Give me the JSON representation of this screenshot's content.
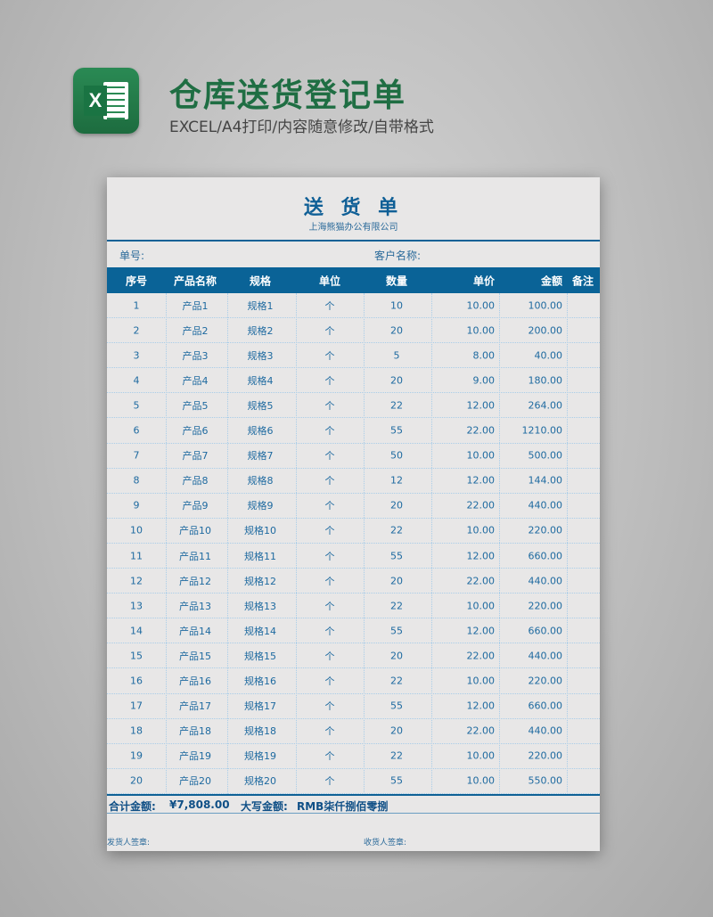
{
  "header": {
    "title": "仓库送货登记单",
    "subtitle": "EXCEL/A4打印/内容随意修改/自带格式",
    "logo_letter": "X",
    "logo_color": "#1f6e43"
  },
  "doc": {
    "title": "送 货 单",
    "company": "上海熊猫办公有限公司",
    "order_no_label": "单号:",
    "customer_label": "客户名称:",
    "columns": [
      "序号",
      "产品名称",
      "规格",
      "单位",
      "数量",
      "单价",
      "金额",
      "备注"
    ],
    "rows": [
      [
        "1",
        "产品1",
        "规格1",
        "个",
        "10",
        "10.00",
        "100.00"
      ],
      [
        "2",
        "产品2",
        "规格2",
        "个",
        "20",
        "10.00",
        "200.00"
      ],
      [
        "3",
        "产品3",
        "规格3",
        "个",
        "5",
        "8.00",
        "40.00"
      ],
      [
        "4",
        "产品4",
        "规格4",
        "个",
        "20",
        "9.00",
        "180.00"
      ],
      [
        "5",
        "产品5",
        "规格5",
        "个",
        "22",
        "12.00",
        "264.00"
      ],
      [
        "6",
        "产品6",
        "规格6",
        "个",
        "55",
        "22.00",
        "1210.00"
      ],
      [
        "7",
        "产品7",
        "规格7",
        "个",
        "50",
        "10.00",
        "500.00"
      ],
      [
        "8",
        "产品8",
        "规格8",
        "个",
        "12",
        "12.00",
        "144.00"
      ],
      [
        "9",
        "产品9",
        "规格9",
        "个",
        "20",
        "22.00",
        "440.00"
      ],
      [
        "10",
        "产品10",
        "规格10",
        "个",
        "22",
        "10.00",
        "220.00"
      ],
      [
        "11",
        "产品11",
        "规格11",
        "个",
        "55",
        "12.00",
        "660.00"
      ],
      [
        "12",
        "产品12",
        "规格12",
        "个",
        "20",
        "22.00",
        "440.00"
      ],
      [
        "13",
        "产品13",
        "规格13",
        "个",
        "22",
        "10.00",
        "220.00"
      ],
      [
        "14",
        "产品14",
        "规格14",
        "个",
        "55",
        "12.00",
        "660.00"
      ],
      [
        "15",
        "产品15",
        "规格15",
        "个",
        "20",
        "22.00",
        "440.00"
      ],
      [
        "16",
        "产品16",
        "规格16",
        "个",
        "22",
        "10.00",
        "220.00"
      ],
      [
        "17",
        "产品17",
        "规格17",
        "个",
        "55",
        "12.00",
        "660.00"
      ],
      [
        "18",
        "产品18",
        "规格18",
        "个",
        "20",
        "22.00",
        "440.00"
      ],
      [
        "19",
        "产品19",
        "规格19",
        "个",
        "22",
        "10.00",
        "220.00"
      ],
      [
        "20",
        "产品20",
        "规格20",
        "个",
        "55",
        "10.00",
        "550.00"
      ]
    ],
    "total_label": "合计金额:",
    "total_value": "¥7,808.00",
    "words_label": "大写金额:",
    "words_value": "RMB柒仟捌佰零捌",
    "sender_label": "发货人签章:",
    "receiver_label": "收货人签章:",
    "accent": "#0a6397"
  }
}
